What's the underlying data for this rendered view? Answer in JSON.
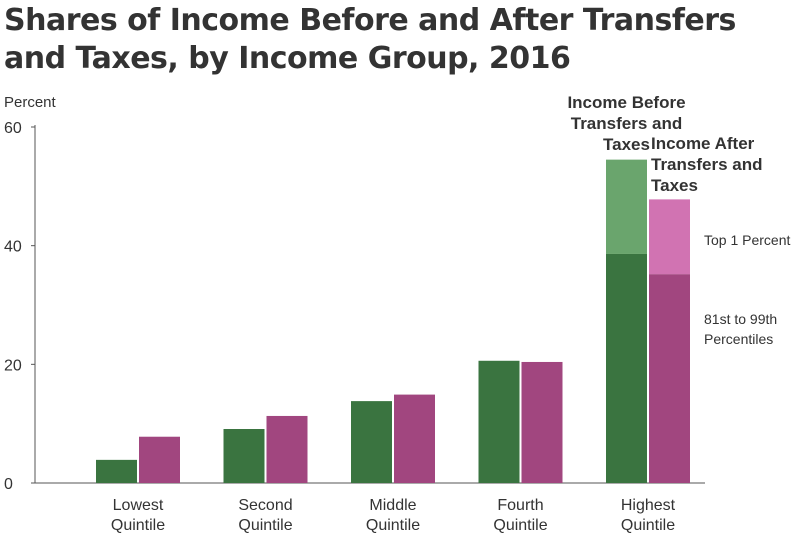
{
  "title_lines": [
    "Shares of Income Before and After Transfers",
    "and Taxes, by Income Group, 2016"
  ],
  "colors": {
    "before": "#3a7440",
    "before_top": "#6aa56d",
    "after": "#a1467f",
    "after_top": "#d173b2",
    "axis": "#555555",
    "text": "#333333"
  },
  "chart_data": {
    "type": "bar",
    "ylabel": "Percent",
    "ylim": [
      0,
      60
    ],
    "yticks": [
      0,
      20,
      40,
      60
    ],
    "grid": false,
    "categories": [
      [
        "Lowest",
        "Quintile"
      ],
      [
        "Second",
        "Quintile"
      ],
      [
        "Middle",
        "Quintile"
      ],
      [
        "Fourth",
        "Quintile"
      ],
      [
        "Highest",
        "Quintile"
      ]
    ],
    "series": [
      {
        "name": "Income Before Transfers and Taxes",
        "name_lines": [
          "Income Before",
          "Transfers and",
          "Taxes"
        ],
        "values": [
          3.9,
          9.1,
          13.8,
          20.6,
          54.5
        ]
      },
      {
        "name": "Income After Transfers and Taxes",
        "name_lines": [
          "Income After",
          "Transfers and",
          "Taxes"
        ],
        "values": [
          7.8,
          11.3,
          14.9,
          20.4,
          47.8
        ]
      }
    ],
    "highest_quintile_breakdown": {
      "before": {
        "81st to 99th Percentiles": 38.6,
        "Top 1 Percent": 15.9
      },
      "after": {
        "81st to 99th Percentiles": 35.2,
        "Top 1 Percent": 12.6
      }
    },
    "segment_labels": [
      {
        "text_lines": [
          "Top 1 Percent"
        ]
      },
      {
        "text_lines": [
          "81st to 99th",
          "Percentiles"
        ]
      }
    ]
  }
}
